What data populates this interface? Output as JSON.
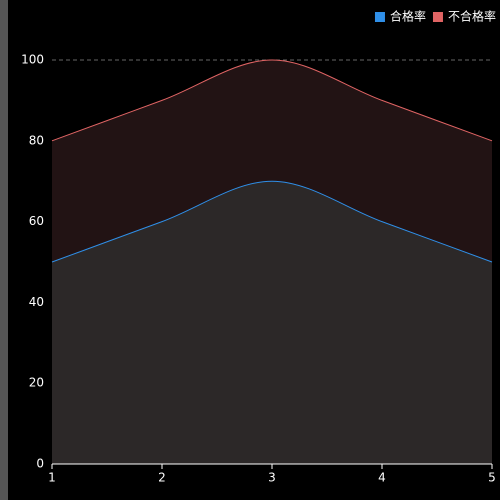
{
  "chart_data": {
    "type": "stacked-area",
    "stacked": true,
    "smooth": true,
    "x": [
      1,
      2,
      3,
      4,
      5
    ],
    "series": [
      {
        "name": "合格率",
        "color": "#2f8fe8",
        "fill": "#2c2828",
        "values": [
          50,
          60,
          70,
          60,
          50
        ]
      },
      {
        "name": "不合格率",
        "color": "#e06464",
        "fill": "#221314",
        "values": [
          30,
          30,
          30,
          30,
          30
        ]
      }
    ],
    "xlim": [
      1,
      5
    ],
    "xticks": [
      1,
      2,
      3,
      4,
      5
    ],
    "ylim": [
      0,
      100
    ],
    "yticks": [
      0,
      20,
      40,
      60,
      80,
      100
    ],
    "grid": true,
    "legend": "top-right"
  }
}
